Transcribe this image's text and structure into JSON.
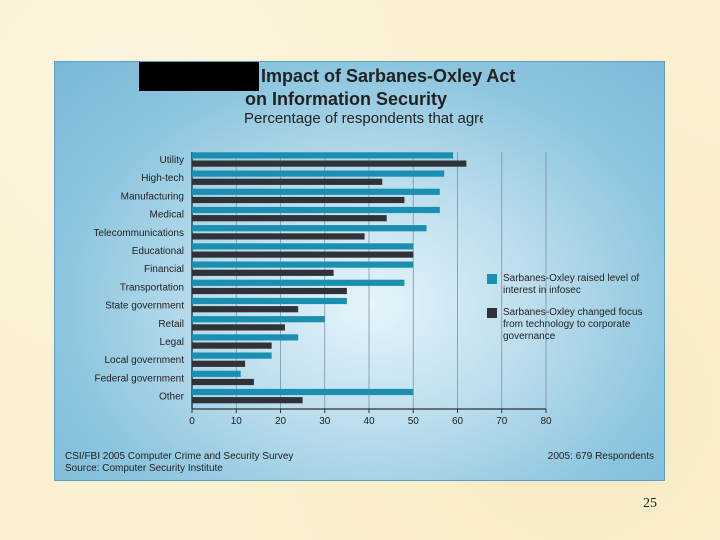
{
  "page_number": "25",
  "footer": {
    "source_line_1": "CSI/FBI 2005 Computer Crime and Security Survey",
    "source_line_2": "Source: Computer Security Institute",
    "respondents": "2005: 679 Respondents"
  },
  "chart_data": {
    "type": "bar",
    "orientation": "horizontal",
    "title": "Impact of Sarbanes-Oxley Act on Information Security",
    "title_lines": [
      "Impact of Sarbanes-Oxley Act",
      "on Information Security"
    ],
    "subtitle": "Percentage of respondents that agree",
    "categories": [
      "Utility",
      "High-tech",
      "Manufacturing",
      "Medical",
      "Telecommunications",
      "Educational",
      "Financial",
      "Transportation",
      "State government",
      "Retail",
      "Legal",
      "Local government",
      "Federal government",
      "Other"
    ],
    "series": [
      {
        "name": "Sarbanes-Oxley raised level of interest in infosec",
        "legend_text": "Sarbanes-Oxley raised level of interest in infosec",
        "color": "#1a8fb1",
        "values": [
          59,
          57,
          56,
          56,
          53,
          50,
          50,
          48,
          35,
          30,
          24,
          18,
          11,
          50
        ]
      },
      {
        "name": "Sarbanes-Oxley changed focus from technology to corporate governance",
        "legend_text": "Sarbanes-Oxley changed focus from technology to corporate governance",
        "color": "#2f3236",
        "values": [
          62,
          43,
          48,
          44,
          39,
          50,
          32,
          35,
          24,
          21,
          18,
          12,
          14,
          25
        ]
      }
    ],
    "xlim": [
      0,
      80
    ],
    "xticks": [
      "0",
      "10",
      "20",
      "30",
      "40",
      "50",
      "60",
      "70",
      "80"
    ],
    "grid": true,
    "legend_position": "right"
  }
}
